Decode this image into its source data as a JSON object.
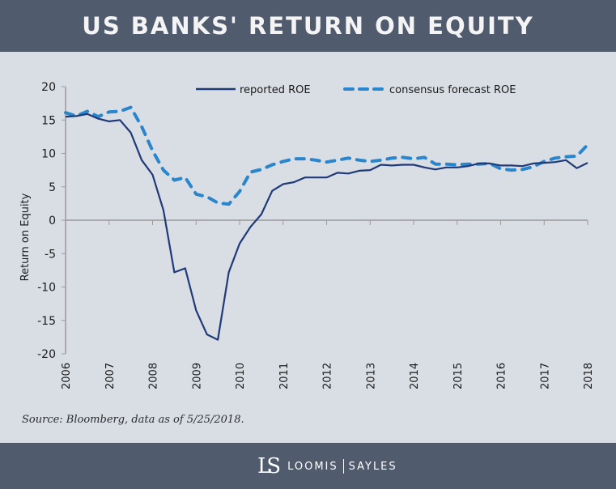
{
  "header": {
    "title": "US BANKS' RETURN ON EQUITY"
  },
  "colors": {
    "header_bg": "#515b6e",
    "plot_bg": "#d9dde4",
    "reported": "#1f3a78",
    "forecast": "#2a86cc",
    "axis": "#9a9a9a"
  },
  "source": "Source: Bloomberg, data as of 5/25/2018.",
  "footer": {
    "logo_mark": "LS",
    "brand_left": "LOOMIS",
    "brand_right": "SAYLES"
  },
  "chart_data": {
    "type": "line",
    "title": "US BANKS' RETURN ON EQUITY",
    "xlabel": "",
    "ylabel": "Return on Equity",
    "ylim": [
      -20,
      20
    ],
    "yticks": [
      20,
      15,
      10,
      5,
      0,
      -5,
      -10,
      -15,
      -20
    ],
    "xticks": [
      "2006",
      "2007",
      "2008",
      "2009",
      "2010",
      "2011",
      "2012",
      "2013",
      "2014",
      "2015",
      "2016",
      "2017",
      "2018"
    ],
    "x_range": [
      2006,
      2018
    ],
    "grid": false,
    "legend_position": "top",
    "x": [
      2006.0,
      2006.25,
      2006.5,
      2006.75,
      2007.0,
      2007.25,
      2007.5,
      2007.75,
      2008.0,
      2008.25,
      2008.5,
      2008.75,
      2009.0,
      2009.25,
      2009.5,
      2009.75,
      2010.0,
      2010.25,
      2010.5,
      2010.75,
      2011.0,
      2011.25,
      2011.5,
      2011.75,
      2012.0,
      2012.25,
      2012.5,
      2012.75,
      2013.0,
      2013.25,
      2013.5,
      2013.75,
      2014.0,
      2014.25,
      2014.5,
      2014.75,
      2015.0,
      2015.25,
      2015.5,
      2015.75,
      2016.0,
      2016.25,
      2016.5,
      2016.75,
      2017.0,
      2017.25,
      2017.5,
      2017.75,
      2018.0
    ],
    "series": [
      {
        "name": "reported ROE",
        "style": "solid",
        "color": "#1f3a78",
        "values": [
          15.5,
          15.6,
          15.9,
          15.2,
          14.8,
          15.0,
          13.1,
          9.0,
          6.8,
          1.5,
          -7.8,
          -7.2,
          -13.5,
          -17.1,
          -17.9,
          -7.8,
          -3.5,
          -1.0,
          0.9,
          4.4,
          5.4,
          5.7,
          6.4,
          6.4,
          6.4,
          7.1,
          7.0,
          7.4,
          7.5,
          8.3,
          8.2,
          8.3,
          8.3,
          7.9,
          7.6,
          7.9,
          7.9,
          8.1,
          8.5,
          8.5,
          8.2,
          8.2,
          8.1,
          8.5,
          8.6,
          8.7,
          9.0,
          7.8,
          8.6
        ]
      },
      {
        "name": "consensus forecast ROE",
        "style": "dashed",
        "color": "#2a86cc",
        "values": [
          16.1,
          15.6,
          16.3,
          15.5,
          16.2,
          16.3,
          16.9,
          14.0,
          10.4,
          7.5,
          6.0,
          6.4,
          3.9,
          3.5,
          2.6,
          2.4,
          4.3,
          7.2,
          7.6,
          8.3,
          8.8,
          9.2,
          9.2,
          9.0,
          8.7,
          9.0,
          9.3,
          9.0,
          8.8,
          9.0,
          9.3,
          9.4,
          9.2,
          9.4,
          8.4,
          8.4,
          8.3,
          8.4,
          8.4,
          8.5,
          7.7,
          7.5,
          7.6,
          8.0,
          8.8,
          9.3,
          9.5,
          9.6,
          11.3
        ]
      }
    ]
  }
}
